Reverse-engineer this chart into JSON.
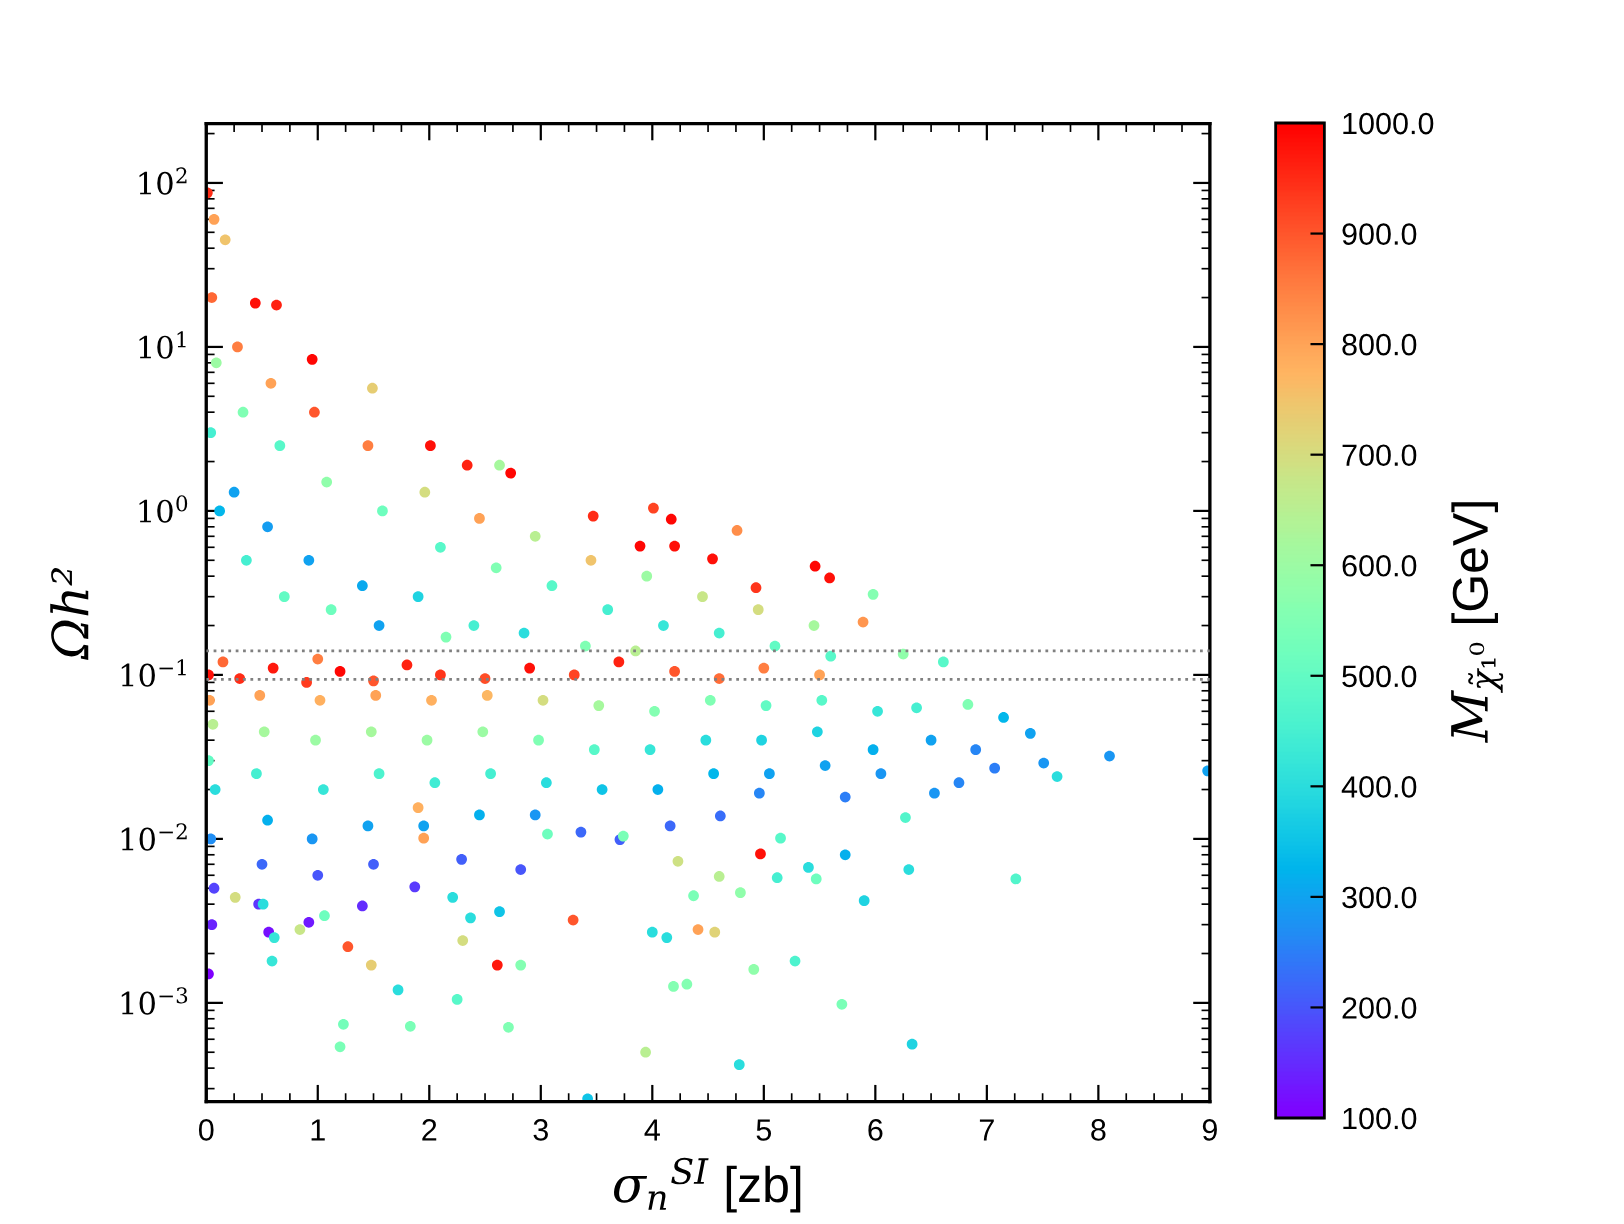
{
  "chart_data": {
    "type": "scatter",
    "xlabel": "σ$_{n}$$^{SI}$ [zb]",
    "ylabel": "Ωh²",
    "clabel": "M$_{χ̃₁⁰}$ [GeV]",
    "log": "y",
    "marker": "circle",
    "xlim": [
      0,
      9
    ],
    "ylim": [
      0.00025,
      230
    ],
    "xticks": [
      0,
      1,
      2,
      3,
      4,
      5,
      6,
      7,
      8,
      9,
      {
        "value": 0.25,
        "label": null
      },
      {
        "value": 0.5,
        "label": null
      },
      {
        "value": 0.75,
        "label": null
      },
      {
        "value": 1.25,
        "label": null
      },
      {
        "value": 1.5,
        "label": null
      },
      {
        "value": 1.75,
        "label": null
      },
      {
        "value": 2.25,
        "label": null
      },
      {
        "value": 2.5,
        "label": null
      },
      {
        "value": 2.75,
        "label": null
      },
      {
        "value": 3.25,
        "label": null
      },
      {
        "value": 3.5,
        "label": null
      },
      {
        "value": 3.75,
        "label": null
      },
      {
        "value": 4.25,
        "label": null
      },
      {
        "value": 4.5,
        "label": null
      },
      {
        "value": 4.75,
        "label": null
      },
      {
        "value": 5.25,
        "label": null
      },
      {
        "value": 5.5,
        "label": null
      },
      {
        "value": 5.75,
        "label": null
      },
      {
        "value": 6.25,
        "label": null
      },
      {
        "value": 6.5,
        "label": null
      },
      {
        "value": 6.75,
        "label": null
      },
      {
        "value": 7.25,
        "label": null
      },
      {
        "value": 7.5,
        "label": null
      },
      {
        "value": 7.75,
        "label": null
      },
      {
        "value": 8.25,
        "label": null
      },
      {
        "value": 8.5,
        "label": null
      },
      {
        "value": 8.75,
        "label": null
      }
    ],
    "yticks": [
      {
        "value": 0.001,
        "label": "10$^{−3}$"
      },
      {
        "value": 0.01,
        "label": "10$^{−2}$"
      },
      {
        "value": 0.1,
        "label": "10$^{−1}$"
      },
      {
        "value": 1,
        "label": "10$^{0}$"
      },
      {
        "value": 10,
        "label": "10$^{1}$"
      },
      {
        "value": 100,
        "label": "10$^{2}$"
      },
      {
        "value": 0.0003,
        "label": null
      },
      {
        "value": 0.0004,
        "label": null
      },
      {
        "value": 0.0005,
        "label": null
      },
      {
        "value": 0.0006,
        "label": null
      },
      {
        "value": 0.0007,
        "label": null
      },
      {
        "value": 0.0008,
        "label": null
      },
      {
        "value": 0.0009,
        "label": null
      },
      {
        "value": 0.002,
        "label": null
      },
      {
        "value": 0.003,
        "label": null
      },
      {
        "value": 0.004,
        "label": null
      },
      {
        "value": 0.005,
        "label": null
      },
      {
        "value": 0.006,
        "label": null
      },
      {
        "value": 0.007,
        "label": null
      },
      {
        "value": 0.008,
        "label": null
      },
      {
        "value": 0.009,
        "label": null
      },
      {
        "value": 0.02,
        "label": null
      },
      {
        "value": 0.03,
        "label": null
      },
      {
        "value": 0.04,
        "label": null
      },
      {
        "value": 0.05,
        "label": null
      },
      {
        "value": 0.06,
        "label": null
      },
      {
        "value": 0.07,
        "label": null
      },
      {
        "value": 0.08,
        "label": null
      },
      {
        "value": 0.09,
        "label": null
      },
      {
        "value": 0.2,
        "label": null
      },
      {
        "value": 0.3,
        "label": null
      },
      {
        "value": 0.4,
        "label": null
      },
      {
        "value": 0.5,
        "label": null
      },
      {
        "value": 0.6,
        "label": null
      },
      {
        "value": 0.7,
        "label": null
      },
      {
        "value": 0.8,
        "label": null
      },
      {
        "value": 0.9,
        "label": null
      },
      {
        "value": 2,
        "label": null
      },
      {
        "value": 3,
        "label": null
      },
      {
        "value": 4,
        "label": null
      },
      {
        "value": 5,
        "label": null
      },
      {
        "value": 6,
        "label": null
      },
      {
        "value": 7,
        "label": null
      },
      {
        "value": 8,
        "label": null
      },
      {
        "value": 9,
        "label": null
      },
      {
        "value": 20,
        "label": null
      },
      {
        "value": 30,
        "label": null
      },
      {
        "value": 40,
        "label": null
      },
      {
        "value": 50,
        "label": null
      },
      {
        "value": 60,
        "label": null
      },
      {
        "value": 70,
        "label": null
      },
      {
        "value": 80,
        "label": null
      },
      {
        "value": 90,
        "label": null
      },
      {
        "value": 200,
        "label": null
      }
    ],
    "clim": [
      100,
      1000
    ],
    "cticks": [
      {
        "value": 100,
        "label": "100.0"
      },
      {
        "value": 200,
        "label": "200.0"
      },
      {
        "value": 300,
        "label": "300.0"
      },
      {
        "value": 400,
        "label": "400.0"
      },
      {
        "value": 500,
        "label": "500.0"
      },
      {
        "value": 600,
        "label": "600.0"
      },
      {
        "value": 700,
        "label": "700.0"
      },
      {
        "value": 800,
        "label": "800.0"
      },
      {
        "value": 900,
        "label": "900.0"
      },
      {
        "value": 1000,
        "label": "1000.0"
      }
    ],
    "ref_lines": [
      {
        "axis": "y",
        "value": 0.094,
        "color": "#808080",
        "line_style": "dotted"
      },
      {
        "axis": "y",
        "value": 0.14,
        "color": "#808080",
        "line_style": "dotted"
      }
    ],
    "series": [
      {
        "x": [
          0.01,
          0.07,
          0.17,
          0.44,
          0.63,
          0.95,
          1.49,
          2.01,
          2.34,
          2.63,
          2.73,
          3.47,
          3.89,
          4.01,
          4.17,
          4.2,
          4.54,
          4.76,
          4.93,
          5.46,
          5.59,
          5.98,
          5.89,
          6.25,
          6.61,
          0.05,
          0.09,
          0.04,
          0.12,
          0.28,
          0.33,
          0.25,
          0.36,
          0.58,
          0.66,
          0.55,
          0.7,
          0.97,
          1.08,
          0.92,
          1.12,
          1.45,
          1.58,
          1.4,
          1.55,
          1.96,
          2.1,
          1.9,
          2.15,
          2.45,
          2.6,
          2.4,
          2.95,
          3.1,
          2.85,
          3.45,
          3.6,
          3.4,
          3.95,
          4.1,
          3.85,
          4.45,
          4.6,
          4.95,
          5.1,
          5.45,
          5.6,
          0.02,
          0.3,
          0.6,
          0.9,
          1.2,
          1.5,
          1.8,
          2.1,
          2.5,
          2.9,
          3.3,
          3.7,
          4.2,
          4.6,
          5.0,
          5.5,
          0.15,
          1.0,
          0.03,
          0.06,
          0.02,
          0.08,
          0.04,
          0.07,
          0.05,
          0.48,
          0.52,
          0.45,
          0.55,
          0.5,
          0.47,
          1.02,
          0.98,
          1.05,
          0.95,
          1.0,
          1.52,
          1.48,
          1.55,
          1.45,
          1.5,
          2.02,
          1.98,
          2.05,
          1.95,
          2.52,
          2.48,
          2.55,
          2.45,
          3.02,
          2.98,
          3.05,
          2.95,
          3.52,
          3.48,
          3.55,
          4.02,
          3.98,
          4.05,
          4.52,
          4.48,
          4.55,
          5.02,
          4.98,
          5.05,
          5.52,
          5.48,
          5.55,
          6.02,
          5.98,
          6.05,
          0.02,
          0.56,
          0.92,
          1.4,
          1.87,
          2.29,
          2.82,
          3.36,
          3.71,
          4.16,
          4.61,
          4.96,
          5.73,
          6.37,
          6.83,
          6.5,
          6.75,
          7.07,
          7.15,
          7.39,
          7.51,
          7.63,
          8.1,
          8.98,
          6.53,
          6.9,
          0.26,
          0.51,
          0.61,
          0.59,
          0.84,
          1.06,
          1.27,
          1.48,
          1.72,
          1.23,
          1.2,
          1.83,
          2.25,
          2.3,
          2.61,
          2.82,
          2.71,
          2.37,
          2.63,
          3.29,
          3.42,
          3.94,
          4.0,
          1.9,
          1.95,
          2.21,
          3.06,
          3.74,
          4.13,
          4.19,
          4.31,
          4.23,
          4.37,
          4.41,
          4.56,
          4.6,
          4.79,
          4.78,
          4.91,
          4.97,
          5.12,
          5.15,
          5.28,
          5.4,
          5.47,
          5.7,
          5.73,
          5.9,
          6.3,
          6.27,
          6.33,
          7.26
        ],
        "values": [
          87,
          60,
          45,
          18.5,
          18,
          8.4,
          5.6,
          2.5,
          1.9,
          1.9,
          1.7,
          0.93,
          0.61,
          1.04,
          0.89,
          0.61,
          0.51,
          0.76,
          0.34,
          0.46,
          0.39,
          0.31,
          0.21,
          0.134,
          0.12,
          20,
          8,
          3,
          1,
          10,
          4,
          1.3,
          0.5,
          6,
          2.5,
          0.8,
          0.3,
          4,
          1.5,
          0.5,
          0.25,
          2.5,
          1,
          0.35,
          0.2,
          1.3,
          0.6,
          0.3,
          0.17,
          0.9,
          0.45,
          0.2,
          0.7,
          0.35,
          0.18,
          0.5,
          0.25,
          0.15,
          0.4,
          0.2,
          0.14,
          0.3,
          0.18,
          0.25,
          0.15,
          0.2,
          0.13,
          0.1,
          0.095,
          0.11,
          0.09,
          0.105,
          0.092,
          0.115,
          0.1,
          0.095,
          0.11,
          0.1,
          0.12,
          0.105,
          0.095,
          0.11,
          0.1,
          0.12,
          0.125,
          0.07,
          0.05,
          0.03,
          0.02,
          0.01,
          0.005,
          0.003,
          0.075,
          0.045,
          0.025,
          0.013,
          0.007,
          0.004,
          0.07,
          0.04,
          0.02,
          0.01,
          0.006,
          0.075,
          0.045,
          0.025,
          0.012,
          0.007,
          0.07,
          0.04,
          0.022,
          0.012,
          0.075,
          0.045,
          0.025,
          0.014,
          0.07,
          0.04,
          0.022,
          0.014,
          0.065,
          0.035,
          0.02,
          0.06,
          0.035,
          0.02,
          0.07,
          0.04,
          0.025,
          0.065,
          0.04,
          0.025,
          0.07,
          0.045,
          0.028,
          0.06,
          0.035,
          0.025,
          0.0015,
          0.0027,
          0.0031,
          0.0039,
          0.0051,
          0.0075,
          0.0065,
          0.011,
          0.0099,
          0.012,
          0.0138,
          0.019,
          0.018,
          0.063,
          0.066,
          0.04,
          0.022,
          0.027,
          0.055,
          0.044,
          0.029,
          0.024,
          0.032,
          0.026,
          0.019,
          0.035,
          0.0044,
          0.004,
          0.0025,
          0.0018,
          0.0028,
          0.0034,
          0.0022,
          0.0017,
          0.0012,
          0.00074,
          0.00054,
          0.00072,
          0.00105,
          0.0024,
          0.0017,
          0.0017,
          0.00071,
          0.0033,
          0.0036,
          0.0032,
          0.00026,
          0.0005,
          0.0027,
          0.0155,
          0.0101,
          0.0044,
          0.0107,
          0.0104,
          0.0025,
          0.00126,
          0.0013,
          0.0073,
          0.0045,
          0.0028,
          0.0027,
          0.0059,
          0.0047,
          0.00042,
          0.0016,
          0.0081,
          0.0058,
          0.0101,
          0.0018,
          0.0067,
          0.0057,
          0.00098,
          0.008,
          0.0042,
          0.0065,
          0.0135,
          0.00056,
          0.0057
        ],
        "cvalues": [
          950,
          800,
          750,
          980,
          960,
          990,
          730,
          980,
          960,
          620,
          990,
          950,
          990,
          920,
          990,
          980,
          980,
          830,
          940,
          990,
          980,
          560,
          820,
          580,
          480,
          880,
          600,
          450,
          330,
          850,
          550,
          300,
          450,
          800,
          480,
          290,
          500,
          900,
          580,
          300,
          520,
          850,
          520,
          310,
          300,
          700,
          480,
          380,
          550,
          800,
          550,
          450,
          650,
          480,
          400,
          750,
          450,
          550,
          600,
          420,
          650,
          680,
          450,
          700,
          500,
          620,
          480,
          980,
          950,
          970,
          930,
          990,
          900,
          960,
          940,
          910,
          980,
          920,
          960,
          900,
          870,
          850,
          800,
          880,
          850,
          800,
          650,
          500,
          400,
          270,
          180,
          140,
          800,
          620,
          450,
          320,
          220,
          160,
          780,
          600,
          420,
          280,
          200,
          800,
          620,
          460,
          300,
          210,
          780,
          600,
          440,
          300,
          770,
          600,
          450,
          320,
          700,
          550,
          400,
          280,
          620,
          480,
          350,
          560,
          420,
          320,
          550,
          400,
          330,
          500,
          380,
          300,
          480,
          380,
          300,
          420,
          320,
          280,
          100,
          120,
          130,
          150,
          170,
          210,
          200,
          220,
          210,
          220,
          230,
          260,
          250,
          450,
          550,
          300,
          260,
          250,
          330,
          300,
          280,
          400,
          280,
          300,
          280,
          260,
          700,
          400,
          420,
          420,
          680,
          520,
          900,
          730,
          400,
          530,
          540,
          540,
          480,
          700,
          970,
          560,
          550,
          400,
          350,
          900,
          350,
          650,
          400,
          780,
          800,
          400,
          520,
          540,
          400,
          560,
          560,
          690,
          540,
          800,
          720,
          650,
          580,
          400,
          580,
          980,
          450,
          480,
          460,
          400,
          520,
          540,
          320,
          380,
          400,
          470,
          380,
          470
        ]
      }
    ]
  }
}
